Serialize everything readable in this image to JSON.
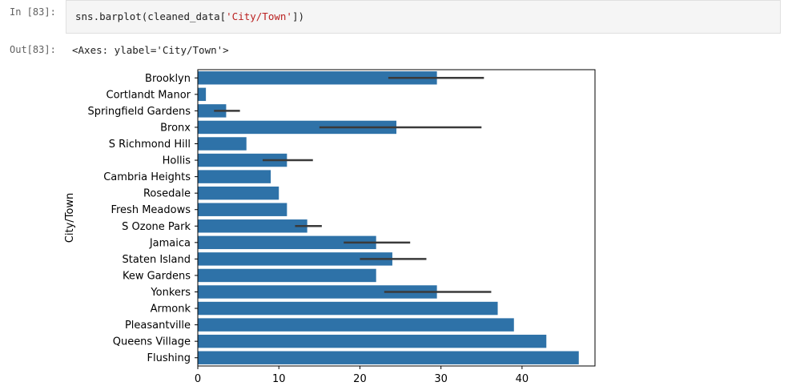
{
  "notebook": {
    "in_prompt": "In [83]:",
    "out_prompt": "Out[83]:",
    "code_prefix": "sns.barplot(cleaned_data[",
    "code_string": "'City/Town'",
    "code_suffix": "])",
    "output_text": "<Axes: ylabel='City/Town'>"
  },
  "chart_data": {
    "type": "bar",
    "orientation": "horizontal",
    "ylabel": "City/Town",
    "xlabel": "",
    "xlim": [
      0,
      49
    ],
    "xticks": [
      0,
      10,
      20,
      30,
      40
    ],
    "bar_color": "#2e72a8",
    "errorbar_color": "#3a3a3a",
    "categories": [
      "Brooklyn",
      "Cortlandt Manor",
      "Springfield Gardens",
      "Bronx",
      "S Richmond Hill",
      "Hollis",
      "Cambria Heights",
      "Rosedale",
      "Fresh Meadows",
      "S Ozone Park",
      "Jamaica",
      "Staten Island",
      "Kew Gardens",
      "Yonkers",
      "Armonk",
      "Pleasantville",
      "Queens Village",
      "Flushing"
    ],
    "values": [
      29.5,
      1,
      3.5,
      24.5,
      6,
      11,
      9,
      10,
      11,
      13.5,
      22,
      24,
      22,
      29.5,
      37,
      39,
      43,
      47
    ],
    "error_low": [
      23.5,
      null,
      2,
      15,
      null,
      8,
      null,
      null,
      null,
      12,
      18,
      20,
      null,
      23,
      null,
      null,
      null,
      null
    ],
    "error_high": [
      35.3,
      null,
      5.2,
      35,
      null,
      14.2,
      null,
      null,
      null,
      15.3,
      26.2,
      28.2,
      null,
      36.2,
      null,
      null,
      null,
      null
    ]
  }
}
